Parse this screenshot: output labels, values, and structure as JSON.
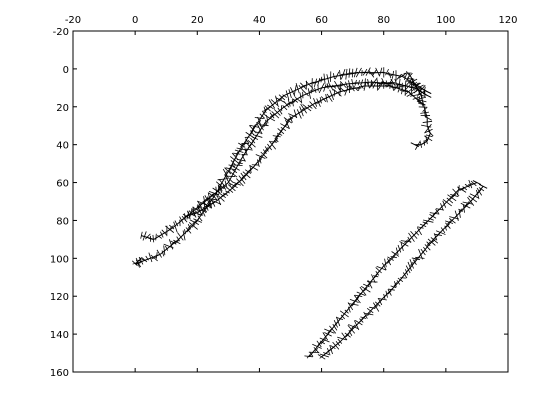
{
  "chart_data": {
    "type": "scatter",
    "title": "",
    "xlabel": "",
    "ylabel": "",
    "x_axis_position": "top",
    "y_axis_inverted": true,
    "xlim": [
      -20,
      120
    ],
    "ylim": [
      -20,
      160
    ],
    "xticks": [
      "-20",
      "0",
      "20",
      "40",
      "60",
      "80",
      "100",
      "120"
    ],
    "yticks": [
      "-20",
      "0",
      "20",
      "40",
      "60",
      "80",
      "100",
      "120",
      "140",
      "160"
    ],
    "grid": false,
    "colors": {
      "frame": "#000000",
      "marks": "#000000"
    },
    "marker": "short oriented line segments (quiver-like)",
    "series": [
      {
        "x": [
          2,
          0,
          8,
          14,
          20,
          26,
          30,
          34,
          38,
          42,
          48,
          56,
          64,
          72,
          80,
          86,
          90,
          94
        ],
        "y": [
          100,
          103,
          98,
          90,
          80,
          66,
          54,
          42,
          32,
          22,
          14,
          8,
          4,
          2,
          2,
          4,
          8,
          12
        ]
      },
      {
        "x": [
          2,
          6,
          12,
          18,
          24,
          30,
          34,
          38,
          42,
          48,
          54,
          60,
          68,
          76,
          84,
          90,
          94
        ],
        "y": [
          88,
          90,
          84,
          76,
          68,
          60,
          48,
          38,
          28,
          20,
          14,
          10,
          8,
          7,
          8,
          10,
          14
        ]
      },
      {
        "x": [
          16,
          20,
          26,
          32,
          38,
          44,
          50,
          58,
          66,
          74,
          82,
          88,
          92
        ],
        "y": [
          78,
          76,
          70,
          62,
          52,
          40,
          26,
          18,
          12,
          9,
          9,
          12,
          18
        ]
      },
      {
        "x": [
          88,
          90,
          92,
          93,
          94,
          94,
          95,
          94,
          92,
          90
        ],
        "y": [
          2,
          8,
          14,
          20,
          26,
          30,
          34,
          38,
          40,
          40
        ]
      },
      {
        "x": [
          56,
          62,
          68,
          74,
          80,
          86,
          92,
          98,
          104,
          110
        ],
        "y": [
          152,
          140,
          128,
          116,
          104,
          94,
          84,
          74,
          64,
          60
        ]
      },
      {
        "x": [
          60,
          66,
          72,
          78,
          84,
          90,
          96,
          102,
          108,
          112
        ],
        "y": [
          152,
          144,
          134,
          124,
          114,
          102,
          90,
          80,
          70,
          62
        ]
      }
    ]
  }
}
